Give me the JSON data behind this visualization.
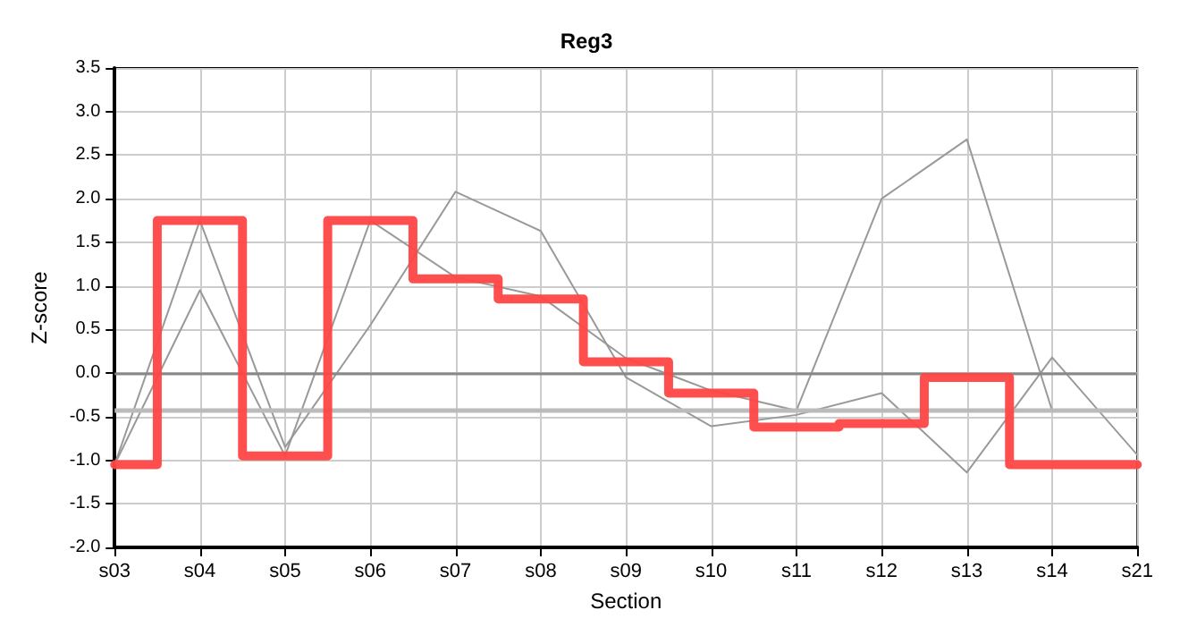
{
  "chart_data": {
    "type": "line",
    "title": "Reg3",
    "xlabel": "Section",
    "ylabel": "Z-score",
    "categories": [
      "s03",
      "s04",
      "s05",
      "s06",
      "s07",
      "s08",
      "s09",
      "s10",
      "s11",
      "s12",
      "s13",
      "s14",
      "s21"
    ],
    "series": [
      {
        "color": "#999999",
        "values": [
          -1.05,
          1.75,
          -0.85,
          0.55,
          2.08,
          1.63,
          -0.05,
          -0.61,
          -0.48,
          -0.23,
          -1.14,
          0.18,
          -0.94
        ]
      },
      {
        "color": "#999999",
        "values": [
          -1.05,
          0.95,
          -0.95,
          1.75,
          1.1,
          0.88,
          0.17,
          -0.2,
          -0.43,
          2.0,
          2.68,
          -0.43,
          -0.43
        ]
      },
      {
        "type": "step",
        "color": "#ff4444",
        "values": [
          -1.05,
          1.75,
          -0.95,
          1.75,
          1.08,
          0.85,
          0.13,
          -0.23,
          -0.62,
          -0.58,
          -0.05,
          -1.05,
          -1.05
        ]
      }
    ],
    "ylim": [
      -2.0,
      3.5
    ],
    "yticks": [
      {
        "value": -2,
        "label": "-2.0"
      },
      {
        "value": -1.5,
        "label": "-1.5"
      },
      {
        "value": -1,
        "label": "-1.0"
      },
      {
        "value": -0.5,
        "label": "-0.5"
      },
      {
        "value": 0,
        "label": "0.0"
      },
      {
        "value": 0.5,
        "label": "0.5"
      },
      {
        "value": 1,
        "label": "1.0"
      },
      {
        "value": 1.5,
        "label": "1.5"
      },
      {
        "value": 2,
        "label": "2.0"
      },
      {
        "value": 2.5,
        "label": "2.5"
      },
      {
        "value": 3,
        "label": "3.0"
      },
      {
        "value": 3.5,
        "label": "3.5"
      }
    ],
    "ref_lines": [
      {
        "axis": "y",
        "value": 0,
        "color": "#888888"
      },
      {
        "axis": "y",
        "value": -0.43,
        "color": "#bbbbbb"
      }
    ],
    "grid": true,
    "marker": "none",
    "line_style": "solid"
  }
}
